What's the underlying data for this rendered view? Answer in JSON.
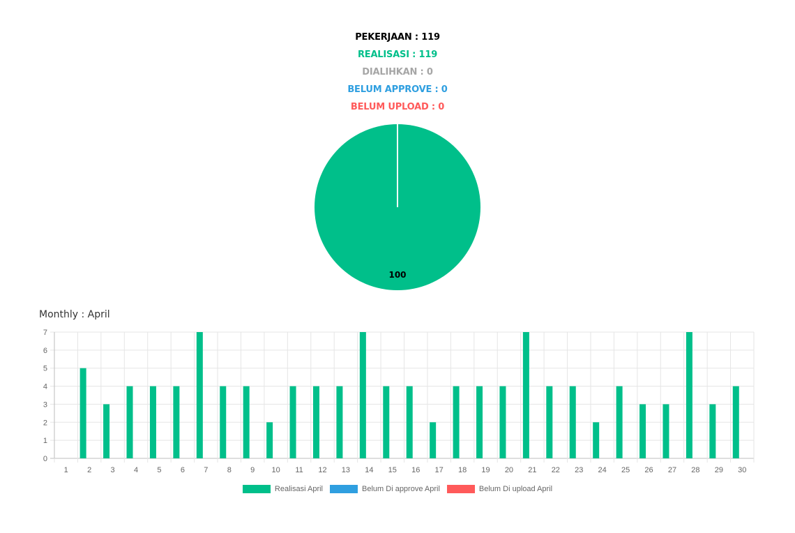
{
  "summary": {
    "pekerjaan": "PEKERJAAN : 119",
    "realisasi": "REALISASI : 119",
    "dialihkan": "DIALIHKAN : 0",
    "belum_approve": "BELUM APPROVE : 0",
    "belum_upload": "BELUM UPLOAD : 0"
  },
  "colors": {
    "black": "#000000",
    "green": "#00bf8a",
    "gray": "#a6a6a6",
    "blue": "#2f9fe0",
    "red": "#ff5a5a",
    "grid": "#e5e5e5",
    "tick": "#666666"
  },
  "monthly_title": "Monthly : April",
  "chart_data": [
    {
      "type": "pie",
      "slices": [
        {
          "value": 100,
          "color": "#00bf8a",
          "label": "100"
        }
      ]
    },
    {
      "type": "bar",
      "categories": [
        "1",
        "2",
        "3",
        "4",
        "5",
        "6",
        "7",
        "8",
        "9",
        "10",
        "11",
        "12",
        "13",
        "14",
        "15",
        "16",
        "17",
        "18",
        "19",
        "20",
        "21",
        "22",
        "23",
        "24",
        "25",
        "26",
        "27",
        "28",
        "29",
        "30"
      ],
      "series": [
        {
          "name": "Realisasi April",
          "color": "#00bf8a",
          "values": [
            0,
            5,
            3,
            4,
            4,
            4,
            7,
            4,
            4,
            2,
            4,
            4,
            4,
            7,
            4,
            4,
            2,
            4,
            4,
            4,
            7,
            4,
            4,
            2,
            4,
            3,
            3,
            7,
            3,
            4
          ]
        },
        {
          "name": "Belum Di approve April",
          "color": "#2f9fe0",
          "values": [
            0,
            0,
            0,
            0,
            0,
            0,
            0,
            0,
            0,
            0,
            0,
            0,
            0,
            0,
            0,
            0,
            0,
            0,
            0,
            0,
            0,
            0,
            0,
            0,
            0,
            0,
            0,
            0,
            0,
            0
          ]
        },
        {
          "name": "Belum Di upload April",
          "color": "#ff5a5a",
          "values": [
            0,
            0,
            0,
            0,
            0,
            0,
            0,
            0,
            0,
            0,
            0,
            0,
            0,
            0,
            0,
            0,
            0,
            0,
            0,
            0,
            0,
            0,
            0,
            0,
            0,
            0,
            0,
            0,
            0,
            0
          ]
        }
      ],
      "y_ticks": [
        "0",
        "1",
        "2",
        "3",
        "4",
        "5",
        "6",
        "7"
      ],
      "ylim": [
        0,
        7
      ],
      "grid": true,
      "legend": "bottom"
    }
  ]
}
